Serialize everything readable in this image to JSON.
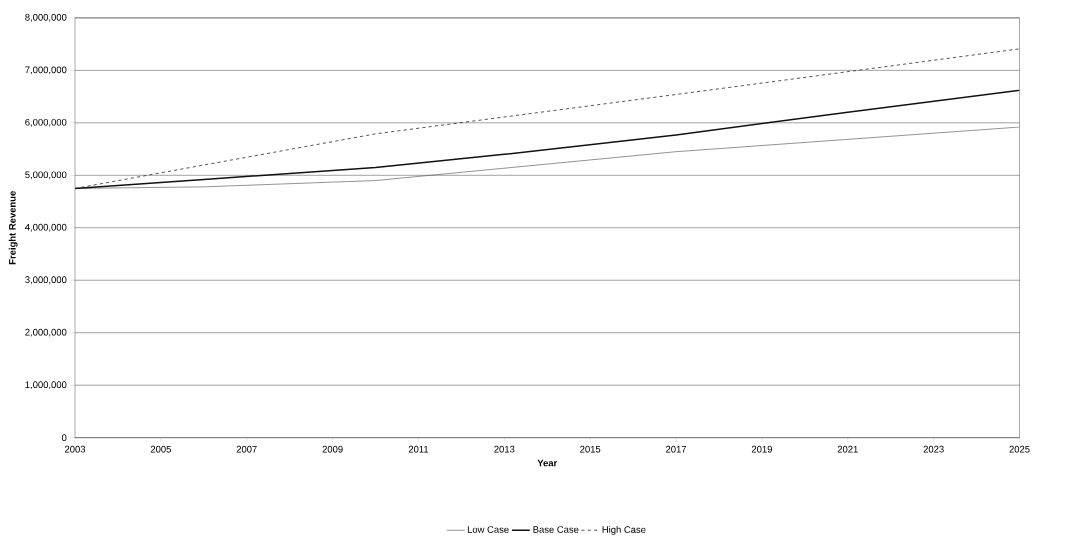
{
  "chart_data": {
    "type": "line",
    "xlabel": "Year",
    "ylabel": "Freight Revenue",
    "xlim": [
      2003,
      2025
    ],
    "xticks": [
      2003,
      2005,
      2007,
      2009,
      2011,
      2013,
      2015,
      2017,
      2019,
      2021,
      2023,
      2025
    ],
    "ylim": [
      0,
      8000000
    ],
    "yticks": [
      0,
      {
        "value": 1000000,
        "label": "1,000,000"
      },
      {
        "value": 2000000,
        "label": "2,000,000"
      },
      {
        "value": 3000000,
        "label": "3,000,000"
      },
      {
        "value": 4000000,
        "label": "4,000,000"
      },
      {
        "value": 5000000,
        "label": "5,000,000"
      },
      {
        "value": 6000000,
        "label": "6,000,000"
      },
      {
        "value": 7000000,
        "label": "7,000,000"
      },
      {
        "value": 8000000,
        "label": "8,000,000"
      }
    ],
    "grid": "y",
    "legend": "bottom",
    "marker": "none",
    "series": [
      {
        "name": "Low Case",
        "color": "#555555",
        "line_style": "solid",
        "x": [
          2003,
          2006,
          2010,
          2017,
          2025
        ],
        "values": [
          4750000,
          4780000,
          4900000,
          5450000,
          5920000
        ]
      },
      {
        "name": "Base Case",
        "color": "#111111",
        "line_style": "solid",
        "x": [
          2003,
          2006,
          2010,
          2013,
          2017,
          2021,
          2025
        ],
        "values": [
          4750000,
          4920000,
          5150000,
          5400000,
          5770000,
          6200000,
          6620000
        ]
      },
      {
        "name": "High Case",
        "color": "#333333",
        "line_style": "dashed",
        "x": [
          2003,
          2010,
          2017,
          2025
        ],
        "values": [
          4750000,
          5790000,
          6540000,
          7410000
        ]
      }
    ]
  }
}
